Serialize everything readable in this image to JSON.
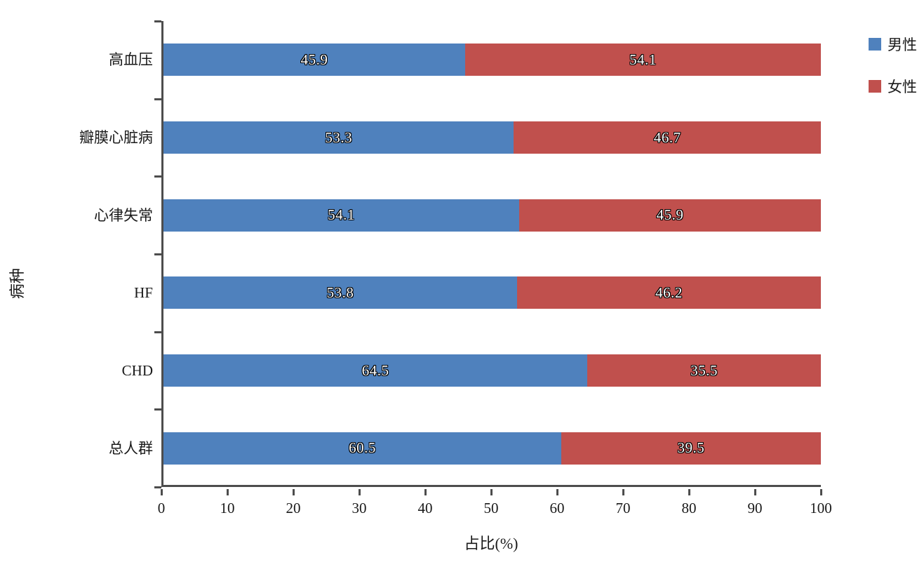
{
  "chart_data": {
    "type": "bar",
    "orientation": "horizontal",
    "stacked": true,
    "title": "",
    "xlabel": "占比(%)",
    "ylabel": "病种",
    "xlim": [
      0,
      100
    ],
    "xticks": [
      0,
      10,
      20,
      30,
      40,
      50,
      60,
      70,
      80,
      90,
      100
    ],
    "categories": [
      "高血压",
      "瓣膜心脏病",
      "心律失常",
      "HF",
      "CHD",
      "总人群"
    ],
    "series": [
      {
        "name": "男性",
        "color": "#4F81BD",
        "values": [
          45.9,
          53.3,
          54.1,
          53.8,
          64.5,
          60.5
        ]
      },
      {
        "name": "女性",
        "color": "#C0504D",
        "values": [
          54.1,
          46.7,
          45.9,
          46.2,
          35.5,
          39.5
        ]
      }
    ],
    "grid": false,
    "legend_position": "top-right"
  },
  "legend": {
    "items": [
      {
        "label": "男性",
        "color": "#4F81BD"
      },
      {
        "label": "女性",
        "color": "#C0504D"
      }
    ]
  },
  "axes": {
    "x_title": "占比(%)",
    "y_title": "病种"
  },
  "colors": {
    "male_bar": "#4F81BD",
    "female_bar": "#C0504D",
    "axis_line": "#4d4d4d",
    "bar_label_text": "#ffffff",
    "bar_label_outline": "#000000"
  }
}
